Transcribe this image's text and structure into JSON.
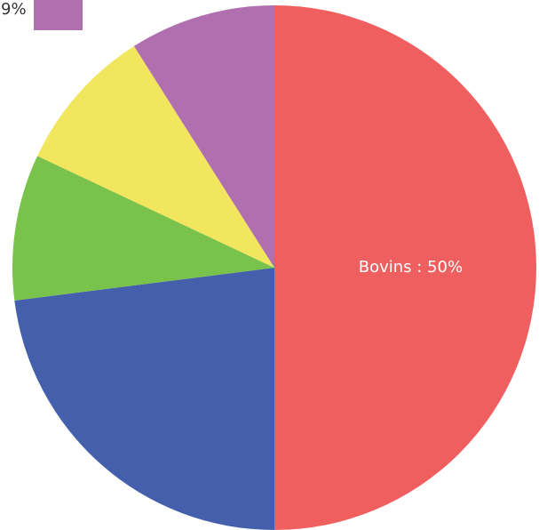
{
  "chart_data": {
    "type": "pie",
    "values": [
      50,
      23,
      9,
      9,
      9
    ],
    "value_labels": [
      "Bovins : 50%",
      null,
      null,
      null,
      "9%"
    ],
    "colors": [
      "#ef5f5f",
      "#445fab",
      "#79c24b",
      "#f1e65d",
      "#b06fae"
    ],
    "tooltip_index": 4
  }
}
